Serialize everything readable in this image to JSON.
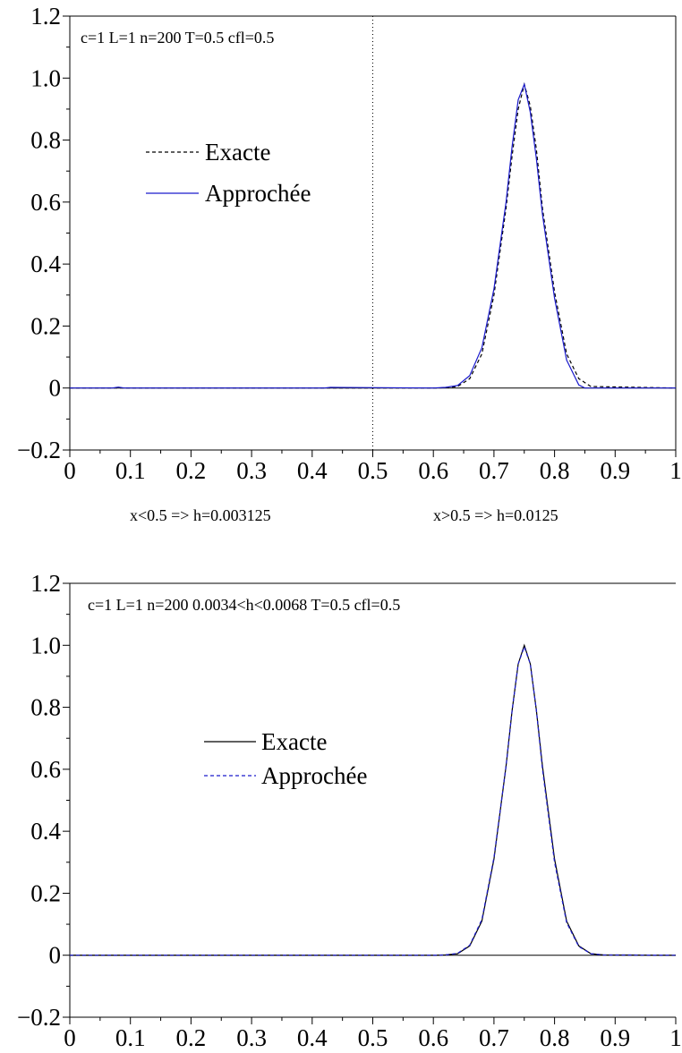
{
  "chart_data": [
    {
      "type": "line",
      "annotation": "c=1 L=1 n=200 T=0.5 cfl=0.5",
      "below_labels": [
        "x<0.5 => h=0.003125",
        "x>0.5 => h=0.0125"
      ],
      "vertical_marker_x": 0.5,
      "xlim": [
        0,
        1
      ],
      "ylim": [
        -0.2,
        1.2
      ],
      "x_ticks": [
        "0",
        "0.1",
        "0.2",
        "0.3",
        "0.4",
        "0.5",
        "0.6",
        "0.7",
        "0.8",
        "0.9",
        "1"
      ],
      "y_ticks": [
        "−0.2",
        "0",
        "0.2",
        "0.4",
        "0.6",
        "0.8",
        "1.0",
        "1.2"
      ],
      "legend_position": "upper-left",
      "series": [
        {
          "name": "Exacte",
          "color": "#000000",
          "dash": true,
          "x": [
            0,
            0.6,
            0.62,
            0.64,
            0.66,
            0.68,
            0.7,
            0.72,
            0.73,
            0.74,
            0.75,
            0.76,
            0.77,
            0.78,
            0.8,
            0.82,
            0.84,
            0.86,
            1.0
          ],
          "y": [
            0,
            0,
            0.001,
            0.005,
            0.03,
            0.11,
            0.3,
            0.58,
            0.75,
            0.9,
            0.98,
            0.91,
            0.77,
            0.58,
            0.31,
            0.11,
            0.03,
            0.005,
            0
          ]
        },
        {
          "name": "Approchée",
          "color": "#1a1acc",
          "dash": false,
          "x": [
            0,
            0.07,
            0.08,
            0.09,
            0.42,
            0.43,
            0.6,
            0.62,
            0.64,
            0.66,
            0.68,
            0.7,
            0.72,
            0.73,
            0.74,
            0.75,
            0.76,
            0.77,
            0.78,
            0.8,
            0.82,
            0.84,
            0.85,
            1.0
          ],
          "y": [
            0,
            0,
            0.003,
            0,
            0,
            0.002,
            0,
            0.002,
            0.008,
            0.04,
            0.13,
            0.32,
            0.6,
            0.78,
            0.93,
            0.98,
            0.89,
            0.74,
            0.56,
            0.29,
            0.09,
            0.01,
            0,
            0
          ]
        }
      ]
    },
    {
      "type": "line",
      "annotation": "c=1  L=1  n=200  0.0034<h<0.0068  T=0.5  cfl=0.5",
      "xlim": [
        0,
        1
      ],
      "ylim": [
        -0.2,
        1.2
      ],
      "x_ticks": [
        "0",
        "0.1",
        "0.2",
        "0.3",
        "0.4",
        "0.5",
        "0.6",
        "0.7",
        "0.8",
        "0.9",
        "1"
      ],
      "y_ticks": [
        "−0.2",
        "0",
        "0.2",
        "0.4",
        "0.6",
        "0.8",
        "1.0",
        "1.2"
      ],
      "legend_position": "center-left",
      "series": [
        {
          "name": "Exacte",
          "color": "#000000",
          "dash": false,
          "x": [
            0,
            0.6,
            0.62,
            0.64,
            0.66,
            0.68,
            0.7,
            0.72,
            0.73,
            0.74,
            0.75,
            0.76,
            0.77,
            0.78,
            0.8,
            0.82,
            0.84,
            0.86,
            0.88,
            1.0
          ],
          "y": [
            0,
            0,
            0.001,
            0.005,
            0.03,
            0.11,
            0.31,
            0.61,
            0.79,
            0.94,
            1.0,
            0.94,
            0.79,
            0.61,
            0.31,
            0.11,
            0.03,
            0.005,
            0.001,
            0
          ]
        },
        {
          "name": "Approchée",
          "color": "#1a1acc",
          "dash": true,
          "x": [
            0,
            0.6,
            0.62,
            0.64,
            0.66,
            0.68,
            0.7,
            0.72,
            0.73,
            0.74,
            0.75,
            0.76,
            0.77,
            0.78,
            0.8,
            0.82,
            0.84,
            0.86,
            0.88,
            1.0
          ],
          "y": [
            0,
            0,
            0.001,
            0.006,
            0.032,
            0.115,
            0.315,
            0.61,
            0.79,
            0.94,
            0.995,
            0.94,
            0.79,
            0.6,
            0.3,
            0.105,
            0.028,
            0.005,
            0.001,
            0
          ]
        }
      ]
    }
  ]
}
